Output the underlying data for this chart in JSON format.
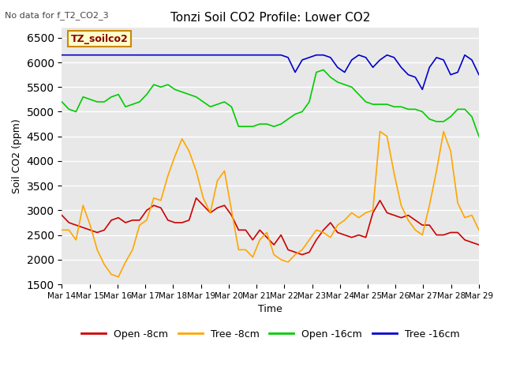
{
  "title": "Tonzi Soil CO2 Profile: Lower CO2",
  "xlabel": "Time",
  "ylabel": "Soil CO2 (ppm)",
  "annotation": "No data for f_T2_CO2_3",
  "legend_label": "TZ_soilco2",
  "ylim": [
    1500,
    6700
  ],
  "yticks": [
    1500,
    2000,
    2500,
    3000,
    3500,
    4000,
    4500,
    5000,
    5500,
    6000,
    6500
  ],
  "xtick_labels": [
    "Mar 14",
    "Mar 15",
    "Mar 16",
    "Mar 17",
    "Mar 18",
    "Mar 19",
    "Mar 20",
    "Mar 21",
    "Mar 22",
    "Mar 23",
    "Mar 24",
    "Mar 25",
    "Mar 26",
    "Mar 27",
    "Mar 28",
    "Mar 29"
  ],
  "bg_color": "#e8e8e8",
  "grid_color": "white",
  "series": {
    "open_8cm": {
      "color": "#cc0000",
      "label": "Open -8cm",
      "y": [
        2900,
        2750,
        2700,
        2650,
        2600,
        2550,
        2600,
        2800,
        2850,
        2750,
        2800,
        2800,
        3000,
        3100,
        3050,
        2800,
        2750,
        2750,
        2800,
        3250,
        3100,
        2950,
        3050,
        3100,
        2900,
        2600,
        2600,
        2400,
        2600,
        2450,
        2300,
        2500,
        2200,
        2150,
        2100,
        2150,
        2400,
        2600,
        2750,
        2550,
        2500,
        2450,
        2500,
        2450,
        2950,
        3200,
        2950,
        2900,
        2850,
        2900,
        2800,
        2700,
        2700,
        2500,
        2500,
        2550,
        2550,
        2400,
        2350,
        2300
      ]
    },
    "tree_8cm": {
      "color": "#ffa500",
      "label": "Tree -8cm",
      "y": [
        2600,
        2600,
        2400,
        3100,
        2700,
        2200,
        1900,
        1700,
        1650,
        1950,
        2200,
        2700,
        2800,
        3250,
        3200,
        3700,
        4100,
        4450,
        4200,
        3800,
        3250,
        2950,
        3600,
        3800,
        3000,
        2200,
        2200,
        2050,
        2400,
        2550,
        2100,
        2000,
        1950,
        2100,
        2200,
        2400,
        2600,
        2550,
        2450,
        2700,
        2800,
        2950,
        2850,
        2950,
        3000,
        4600,
        4500,
        3750,
        3100,
        2800,
        2600,
        2500,
        3100,
        3800,
        4600,
        4200,
        3150,
        2850,
        2900,
        2600
      ]
    },
    "open_16cm": {
      "color": "#00cc00",
      "label": "Open -16cm",
      "y": [
        5200,
        5050,
        5000,
        5300,
        5250,
        5200,
        5200,
        5300,
        5350,
        5100,
        5150,
        5200,
        5350,
        5550,
        5500,
        5550,
        5450,
        5400,
        5350,
        5300,
        5200,
        5100,
        5150,
        5200,
        5100,
        4700,
        4700,
        4700,
        4750,
        4750,
        4700,
        4750,
        4850,
        4950,
        5000,
        5200,
        5800,
        5850,
        5700,
        5600,
        5550,
        5500,
        5350,
        5200,
        5150,
        5150,
        5150,
        5100,
        5100,
        5050,
        5050,
        5000,
        4850,
        4800,
        4800,
        4900,
        5050,
        5050,
        4900,
        4500
      ]
    },
    "tree_16cm": {
      "color": "#0000cc",
      "label": "Tree -16cm",
      "y": [
        6150,
        6150,
        6150,
        6150,
        6150,
        6150,
        6150,
        6150,
        6150,
        6150,
        6150,
        6150,
        6150,
        6150,
        6150,
        6150,
        6150,
        6150,
        6150,
        6150,
        6150,
        6150,
        6150,
        6150,
        6150,
        6150,
        6150,
        6150,
        6150,
        6150,
        6150,
        6150,
        6100,
        5800,
        6050,
        6100,
        6150,
        6150,
        6100,
        5900,
        5800,
        6050,
        6150,
        6100,
        5900,
        6050,
        6150,
        6100,
        5900,
        5750,
        5700,
        5450,
        5900,
        6100,
        6050,
        5750,
        5800,
        6150,
        6050,
        5750
      ]
    }
  }
}
